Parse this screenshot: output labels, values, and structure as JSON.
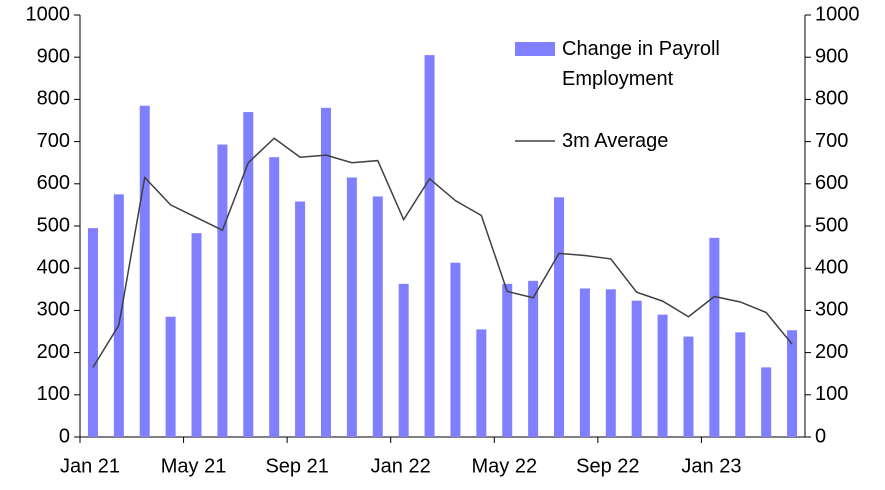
{
  "chart_data": {
    "type": "bar",
    "categories": [
      "Jan 21",
      null,
      null,
      null,
      "May 21",
      null,
      null,
      null,
      "Sep 21",
      null,
      null,
      null,
      "Jan 22",
      null,
      null,
      null,
      "May 22",
      null,
      null,
      null,
      "Sep 22",
      null,
      null,
      null,
      "Jan 23",
      null,
      null,
      null
    ],
    "series": [
      {
        "name": "Change in Payroll Employment",
        "type": "bar",
        "color": "#8080ff",
        "values": [
          495,
          575,
          785,
          285,
          483,
          693,
          770,
          663,
          558,
          780,
          615,
          570,
          363,
          905,
          413,
          255,
          363,
          370,
          568,
          352,
          350,
          323,
          290,
          238,
          472,
          248,
          165,
          253
        ]
      },
      {
        "name": "3m Average",
        "type": "line",
        "color": "#404040",
        "values": [
          165,
          265,
          615,
          550,
          520,
          490,
          650,
          708,
          663,
          668,
          650,
          655,
          515,
          612,
          560,
          525,
          345,
          330,
          435,
          430,
          422,
          343,
          322,
          285,
          333,
          320,
          295,
          220
        ]
      }
    ],
    "ylim": [
      0,
      1000
    ],
    "yticks": [
      0,
      100,
      200,
      300,
      400,
      500,
      600,
      700,
      800,
      900,
      1000
    ],
    "y2lim": [
      0,
      1000
    ],
    "y2ticks": [
      0,
      100,
      200,
      300,
      400,
      500,
      600,
      700,
      800,
      900,
      1000
    ],
    "grid": false,
    "legend": "top-right"
  }
}
